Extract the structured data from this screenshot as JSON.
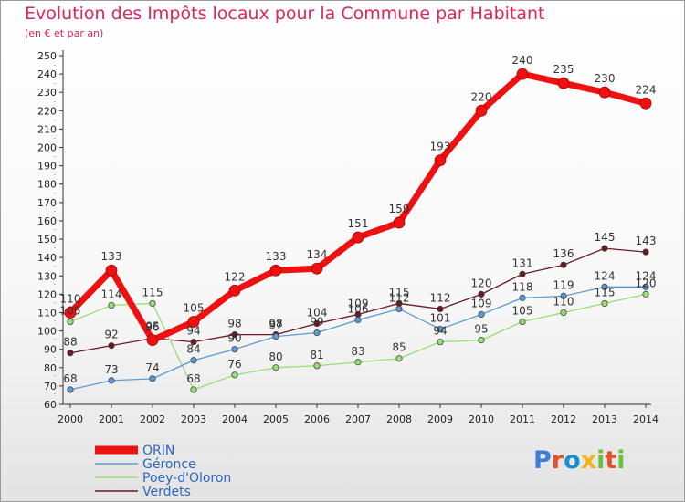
{
  "header": {
    "title": "Evolution des Impôts locaux pour la Commune par Habitant",
    "subtitle": "(en € et par an)"
  },
  "brand": {
    "text": "Proxiti",
    "colors": [
      "#3b7dd8",
      "#e8502a",
      "#1a8fd0",
      "#f2b21b",
      "#6bbf3a",
      "#e8502a",
      "#6bbf3a"
    ]
  },
  "chart_data": {
    "type": "line",
    "x": [
      "2000",
      "2001",
      "2002",
      "2003",
      "2004",
      "2005",
      "2006",
      "2007",
      "2008",
      "2009",
      "2010",
      "2011",
      "2012",
      "2013",
      "2014"
    ],
    "ylim": [
      60,
      250
    ],
    "yticks": [
      60,
      70,
      80,
      90,
      100,
      110,
      120,
      130,
      140,
      150,
      160,
      170,
      180,
      190,
      200,
      210,
      220,
      230,
      240,
      250
    ],
    "grid": false,
    "legend_position": "bottom-left",
    "series": [
      {
        "name": "Verdets",
        "color": "#6b1a24",
        "width": 1.3,
        "values": [
          88,
          92,
          96,
          94,
          98,
          98,
          104,
          109,
          115,
          112,
          120,
          131,
          136,
          145,
          143
        ]
      },
      {
        "name": "Poey-d'Oloron",
        "color": "#99dd77",
        "width": 1.3,
        "values": [
          105,
          114,
          115,
          68,
          76,
          80,
          81,
          83,
          85,
          94,
          95,
          105,
          110,
          115,
          120
        ]
      },
      {
        "name": "Géronce",
        "color": "#5b9bd5",
        "width": 1.3,
        "values": [
          68,
          73,
          74,
          84,
          90,
          97,
          99,
          106,
          112,
          101,
          109,
          118,
          119,
          124,
          124
        ]
      },
      {
        "name": "ORIN",
        "color": "#ee1111",
        "width": 7,
        "values": [
          110,
          133,
          95,
          105,
          122,
          133,
          134,
          151,
          159,
          193,
          220,
          240,
          235,
          230,
          224
        ]
      }
    ],
    "data_labels": [
      [
        "88",
        "92",
        "96",
        "94",
        "98",
        "98",
        "104",
        "109",
        "115",
        "112",
        "120",
        "131",
        "136",
        "145",
        "143"
      ],
      [
        "105",
        "114",
        "115",
        "68",
        "76",
        "80",
        "81",
        "83",
        "85",
        "94",
        "95",
        "105",
        "110",
        "115",
        "120"
      ],
      [
        "68",
        "73",
        "74",
        "84",
        "90",
        "97",
        "99",
        "106",
        "112",
        "101",
        "109",
        "118",
        "119",
        "124",
        "124"
      ],
      [
        "110",
        "133",
        "95",
        "105",
        "122",
        "133",
        "134",
        "151",
        "159",
        "193",
        "220",
        "240",
        "235",
        "230",
        "224"
      ]
    ],
    "legend_order": [
      "ORIN",
      "Géronce",
      "Poey-d'Oloron",
      "Verdets"
    ]
  }
}
